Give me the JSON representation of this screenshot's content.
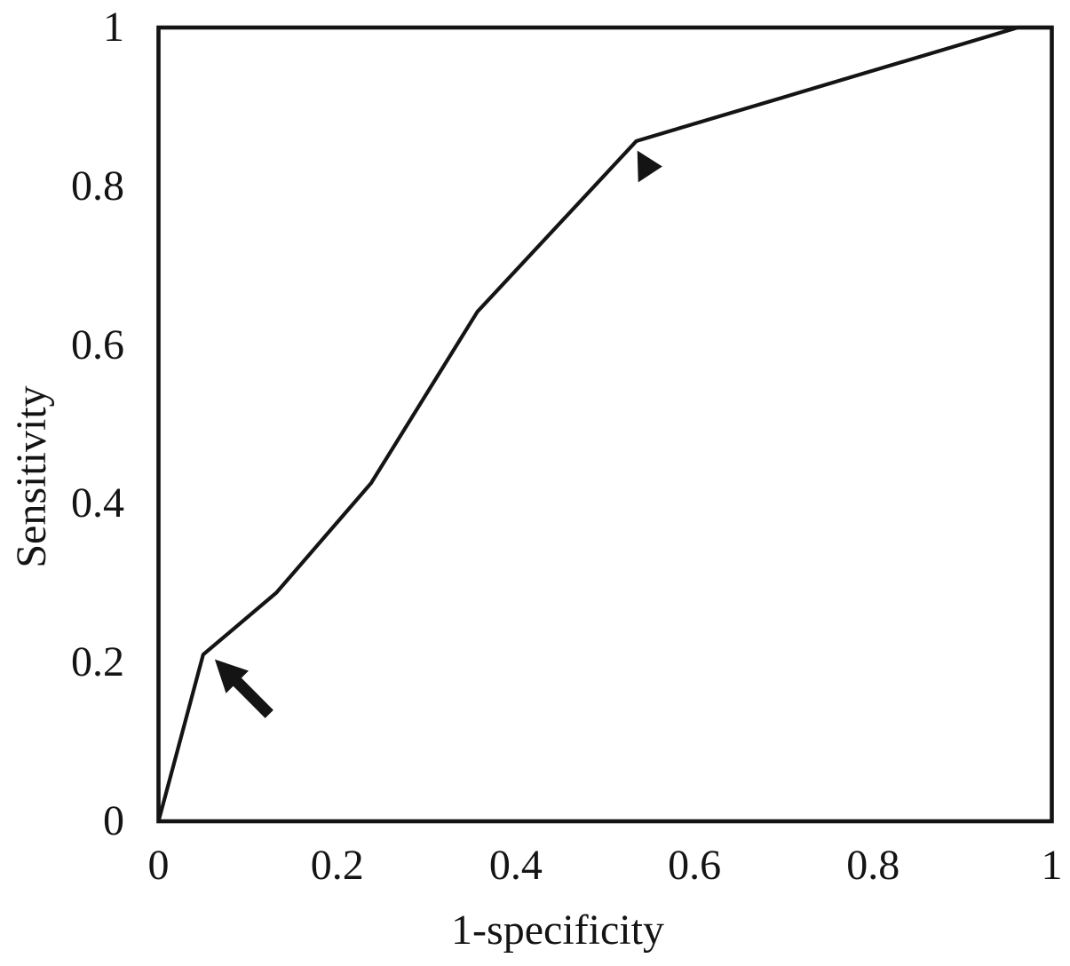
{
  "figure": {
    "background_color": "#ffffff",
    "ink_color": "#141414"
  },
  "chart_data": {
    "type": "line",
    "title": "",
    "xlabel": "1-specificity",
    "ylabel": "Sensitivity",
    "xlim": [
      0,
      1
    ],
    "ylim": [
      0,
      1
    ],
    "x_tick_labels": [
      "0",
      "0.2",
      "0.4",
      "0.6",
      "0.8",
      "1"
    ],
    "y_tick_labels": [
      "0",
      "0.2",
      "0.4",
      "0.6",
      "0.8",
      "1"
    ],
    "grid": false,
    "legend": false,
    "tick_marks": false,
    "plot_border": "full-box",
    "line_color": "#141414",
    "series": [
      {
        "name": "ROC curve",
        "points": [
          [
            0,
            0
          ],
          [
            0.05,
            0.21
          ],
          [
            0.132,
            0.288
          ],
          [
            0.238,
            0.426
          ],
          [
            0.357,
            0.642
          ],
          [
            0.535,
            0.857
          ],
          [
            0.962,
            1.0
          ],
          [
            1.0,
            1.0
          ]
        ]
      }
    ],
    "annotations": [
      {
        "type": "arrow",
        "label": "solid-arrow",
        "tip_xy": [
          0.063,
          0.204
        ],
        "tail_xy": [
          0.124,
          0.135
        ]
      },
      {
        "type": "arrowhead",
        "label": "arrowhead-marker",
        "points": [
          [
            0.536,
            0.845
          ],
          [
            0.564,
            0.825
          ],
          [
            0.537,
            0.805
          ]
        ]
      }
    ]
  }
}
